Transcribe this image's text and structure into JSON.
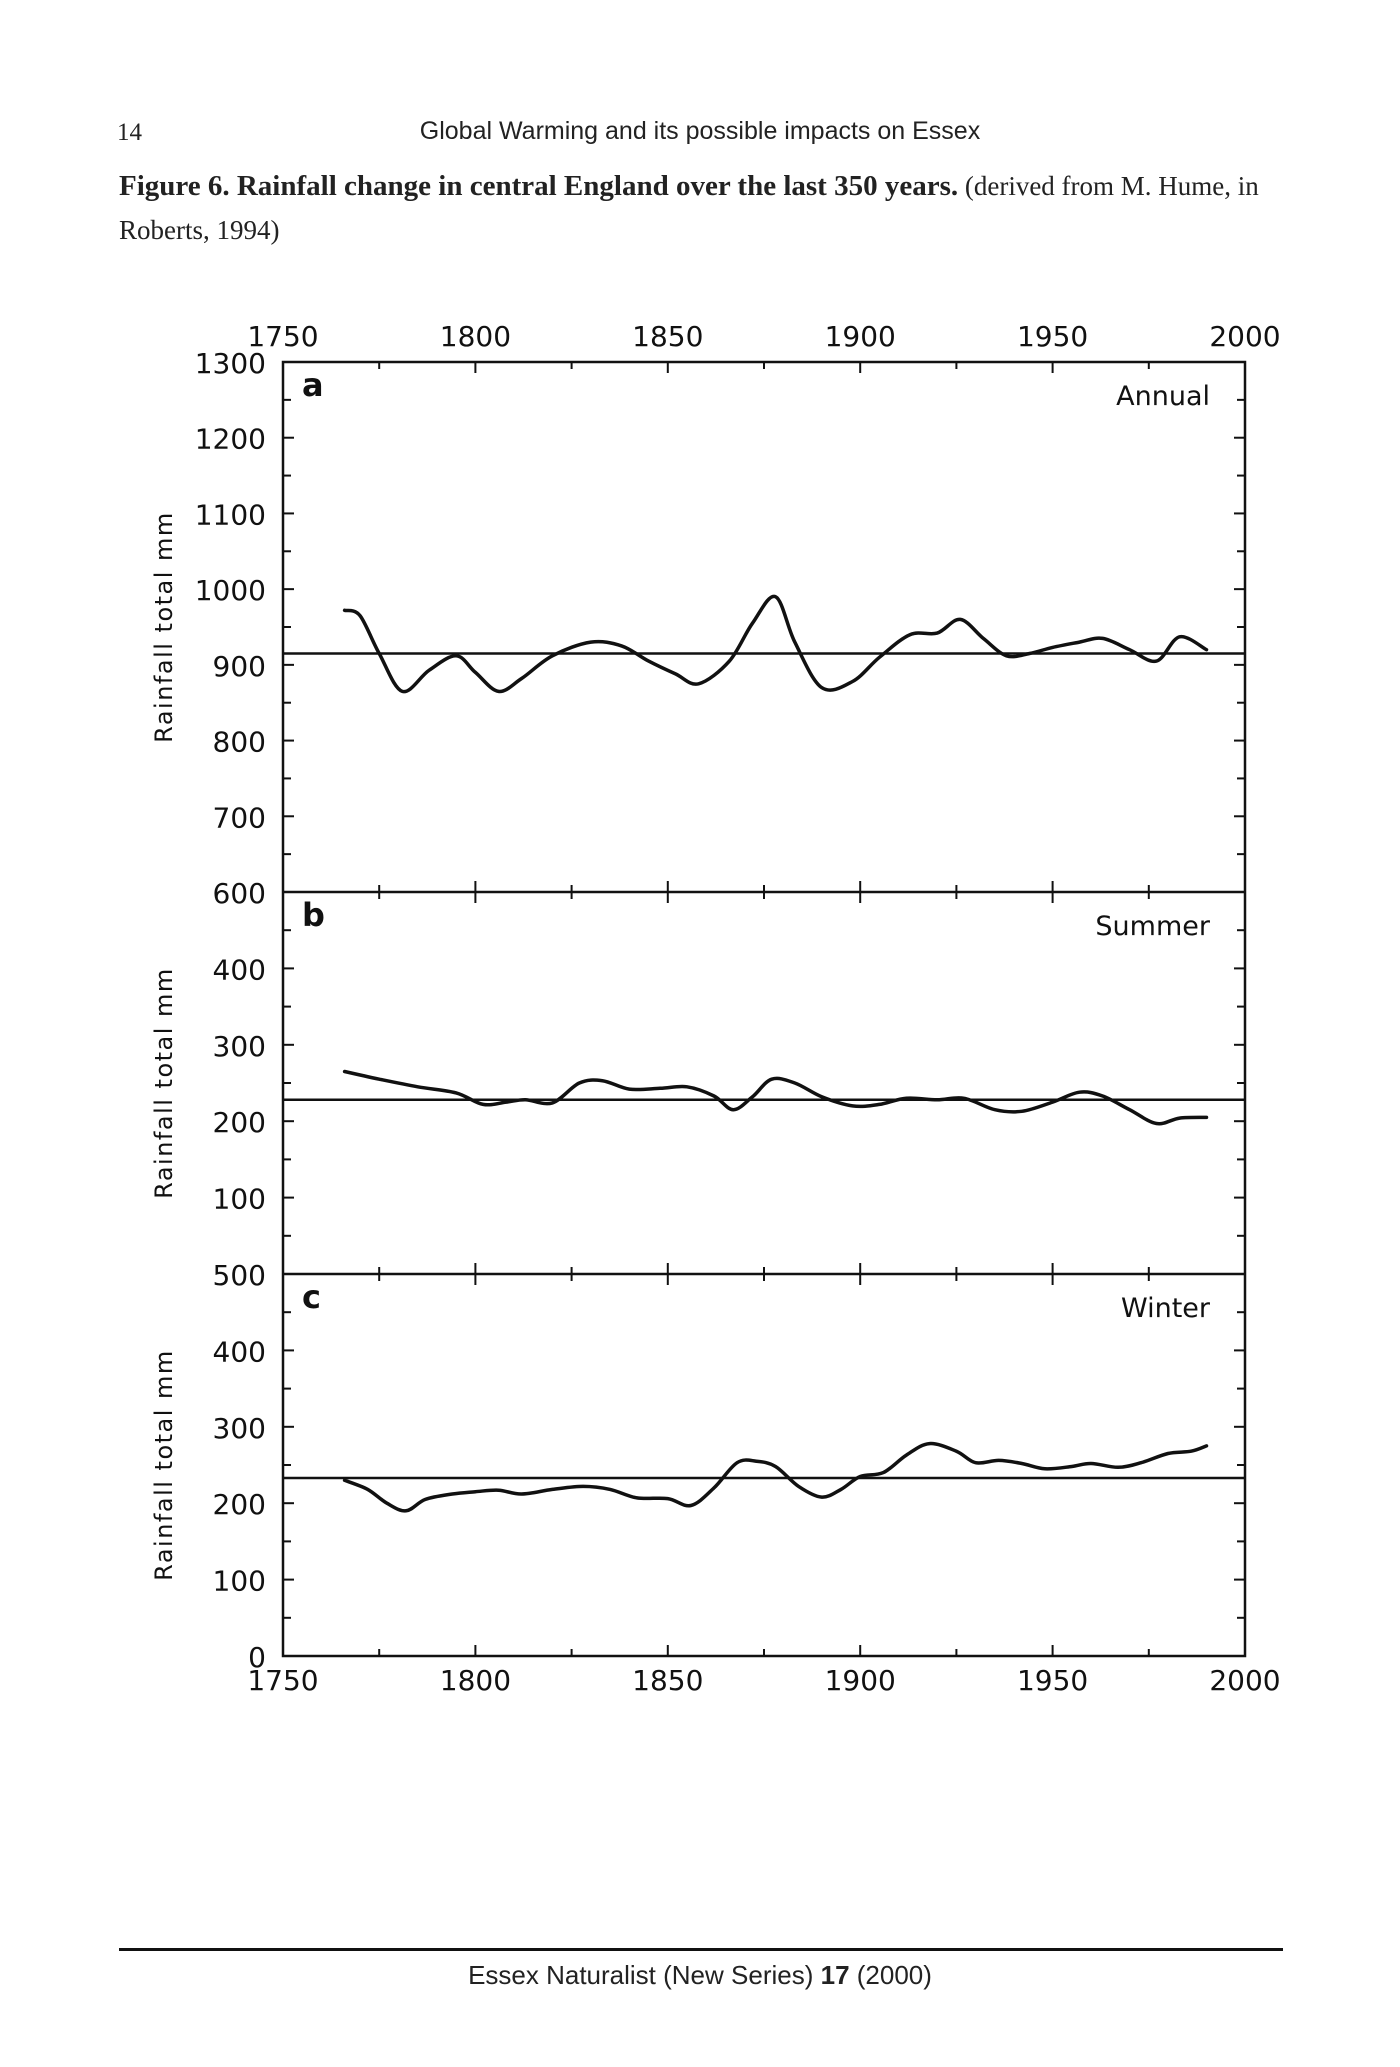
{
  "page": {
    "number": "14",
    "running_head": "Global Warming and its possible impacts on Essex",
    "caption_bold": "Figure 6. Rainfall change in central England over the last 350 years.",
    "caption_rest": "(derived from M. Hume, in Roberts, 1994)",
    "footer_prefix": "Essex Naturalist (New Series)",
    "footer_volume": "17",
    "footer_suffix": "(2000)"
  },
  "chart_data": [
    {
      "type": "line",
      "panel": "a",
      "title": "Annual",
      "ylabel": "Rainfall total mm",
      "xlim": [
        1750,
        2000
      ],
      "ylim": [
        600,
        1300
      ],
      "yticks": [
        1300,
        1200,
        1100,
        1000,
        900,
        800,
        700,
        600
      ],
      "xticks_top": [
        "1750",
        "1800",
        "1850",
        "1900",
        "1950",
        "2000"
      ],
      "reference_value": 915,
      "series": [
        {
          "x": [
            1766,
            1770,
            1775,
            1781,
            1788,
            1795,
            1800,
            1806,
            1812,
            1820,
            1830,
            1838,
            1845,
            1852,
            1858,
            1866,
            1872,
            1878,
            1883,
            1890,
            1898,
            1905,
            1913,
            1920,
            1926,
            1932,
            1938,
            1944,
            1950,
            1957,
            1963,
            1970,
            1977,
            1983,
            1990
          ],
          "y": [
            972,
            965,
            915,
            865,
            893,
            912,
            890,
            865,
            882,
            912,
            930,
            925,
            905,
            888,
            875,
            905,
            955,
            990,
            930,
            870,
            878,
            910,
            940,
            942,
            960,
            935,
            912,
            915,
            923,
            930,
            935,
            920,
            905,
            937,
            920
          ]
        }
      ]
    },
    {
      "type": "line",
      "panel": "b",
      "title": "Summer",
      "ylabel": "Rainfall total mm",
      "xlim": [
        1750,
        2000
      ],
      "ylim": [
        0,
        500
      ],
      "yticks": [
        400,
        300,
        200,
        100
      ],
      "reference_value": 228,
      "series": [
        {
          "x": [
            1766,
            1775,
            1785,
            1795,
            1802,
            1808,
            1813,
            1820,
            1827,
            1833,
            1840,
            1848,
            1855,
            1862,
            1867,
            1872,
            1877,
            1883,
            1890,
            1898,
            1905,
            1912,
            1920,
            1927,
            1935,
            1942,
            1950,
            1957,
            1963,
            1970,
            1977,
            1983,
            1990
          ],
          "y": [
            265,
            255,
            245,
            237,
            222,
            225,
            228,
            224,
            250,
            253,
            242,
            243,
            245,
            233,
            215,
            232,
            255,
            250,
            232,
            220,
            222,
            230,
            228,
            230,
            215,
            213,
            225,
            238,
            233,
            215,
            197,
            204,
            205
          ]
        }
      ]
    },
    {
      "type": "line",
      "panel": "c",
      "title": "Winter",
      "ylabel": "Rainfall total mm",
      "xlim": [
        1750,
        2000
      ],
      "ylim": [
        0,
        500
      ],
      "yticks": [
        500,
        400,
        300,
        200,
        100,
        0
      ],
      "xticks_bottom": [
        "1750",
        "1800",
        "1850",
        "1900",
        "1950",
        "2000"
      ],
      "reference_value": 233,
      "series": [
        {
          "x": [
            1766,
            1772,
            1777,
            1782,
            1787,
            1794,
            1800,
            1806,
            1812,
            1820,
            1828,
            1835,
            1842,
            1850,
            1856,
            1862,
            1868,
            1873,
            1878,
            1884,
            1890,
            1895,
            1900,
            1906,
            1912,
            1918,
            1925,
            1930,
            1936,
            1942,
            1948,
            1955,
            1960,
            1967,
            1973,
            1980,
            1986,
            1990
          ],
          "y": [
            230,
            218,
            200,
            190,
            205,
            212,
            215,
            217,
            212,
            218,
            222,
            218,
            207,
            206,
            197,
            220,
            253,
            255,
            248,
            222,
            208,
            218,
            235,
            240,
            263,
            278,
            268,
            253,
            256,
            252,
            245,
            248,
            252,
            247,
            253,
            265,
            268,
            275
          ]
        }
      ]
    }
  ]
}
